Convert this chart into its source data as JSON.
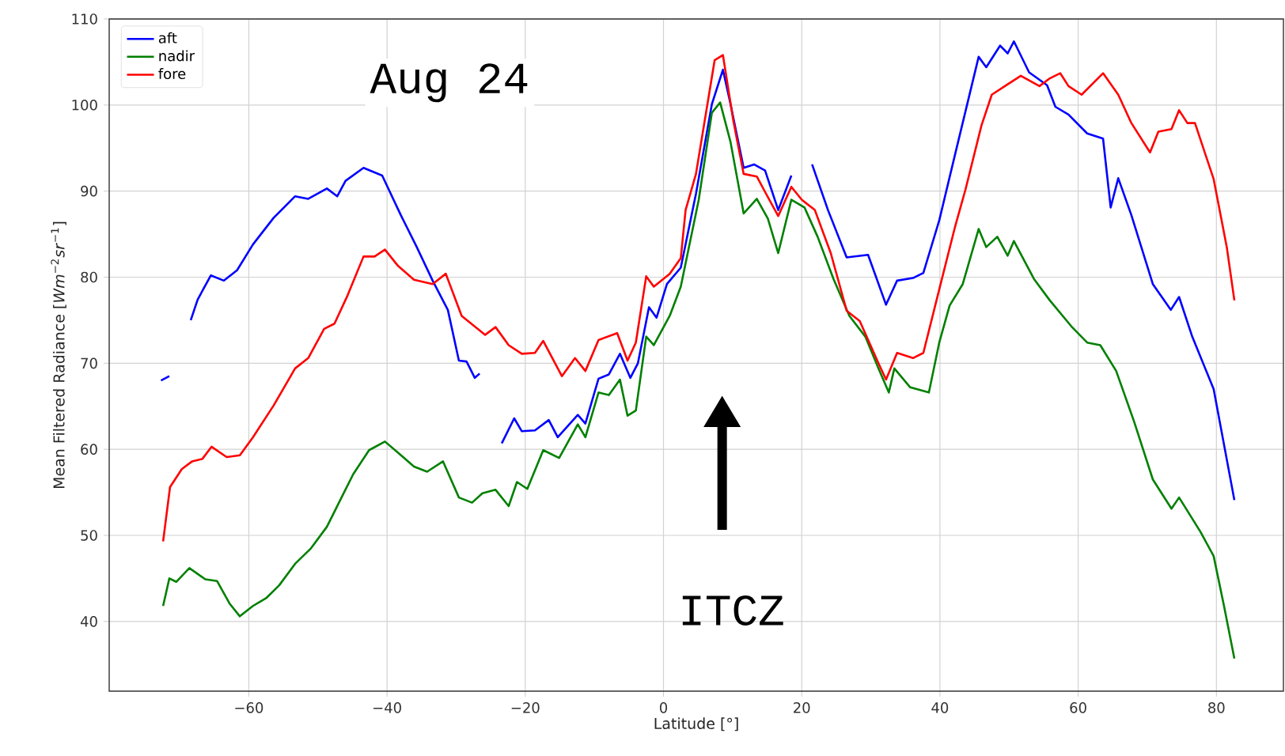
{
  "chart_data": {
    "type": "line",
    "xlabel": "Latitude [°]",
    "ylabel": "Mean Filtered Radiance [*Wm*$^{−2}$*sr*$^{−1}$]",
    "xlim": [
      -80.2,
      89.7
    ],
    "ylim": [
      31.9,
      110
    ],
    "xticks": [
      {
        "value": -60,
        "label": "−60"
      },
      {
        "value": -40,
        "label": "−40"
      },
      {
        "value": -20,
        "label": "−20"
      },
      0,
      20,
      40,
      60,
      80
    ],
    "yticks": [
      40,
      50,
      60,
      70,
      80,
      90,
      100,
      110
    ],
    "grid": true,
    "legend": "top left",
    "annotations": [
      "Aug 24",
      "ITCZ"
    ],
    "series": [
      {
        "name": "aft",
        "color": "#0000ff",
        "x": [
          -72.7,
          -71.5,
          -70,
          -68.4,
          -67.4,
          -65.5,
          -63.6,
          -61.7,
          -59.4,
          -56.4,
          -53.3,
          -51.4,
          -48.7,
          -47.2,
          -46.0,
          -43.4,
          -40.7,
          -38.0,
          -35.7,
          -33.4,
          -31.2,
          -29.6,
          -28.5,
          -27.3,
          -26.6,
          -25,
          -23.4,
          -21.6,
          -20.5,
          -18.6,
          -16.6,
          -15.3,
          -12.4,
          -11.3,
          -9.4,
          -7.9,
          -6.3,
          -4.8,
          -3.7,
          -2.1,
          -1.0,
          0.5,
          2.5,
          4.7,
          7.0,
          8.6,
          9.7,
          11.6,
          13.1,
          14.7,
          16.6,
          18.5,
          20,
          21.5,
          23.8,
          26.5,
          29.6,
          32.2,
          33.8,
          36.1,
          37.6,
          39.9,
          42.2,
          45.6,
          46.7,
          48.7,
          49.8,
          50.7,
          52.9,
          55.5,
          56.7,
          58.6,
          61.3,
          63.6,
          64.7,
          65.8,
          67.7,
          70.8,
          73.4,
          74.6,
          76.5,
          79.6,
          82.6
        ],
        "values": [
          68,
          68.5,
          null,
          75.0,
          77.4,
          80.2,
          79.6,
          80.8,
          83.8,
          86.9,
          89.4,
          89.1,
          90.3,
          89.4,
          91.2,
          92.7,
          91.8,
          87.2,
          83.5,
          79.6,
          76.2,
          70.3,
          70.2,
          68.3,
          68.8,
          null,
          60.7,
          63.6,
          62.1,
          62.2,
          63.4,
          61.4,
          64.0,
          63.0,
          68.2,
          68.7,
          71.1,
          68.3,
          70.0,
          76.5,
          75.3,
          79.2,
          81.1,
          89.7,
          100.1,
          104.1,
          100.1,
          92.7,
          93.1,
          92.4,
          87.8,
          91.8,
          null,
          93.1,
          87.8,
          82.3,
          82.6,
          76.8,
          79.6,
          79.9,
          80.5,
          86.6,
          94.3,
          105.6,
          104.4,
          106.9,
          106.0,
          107.4,
          103.8,
          102.3,
          99.8,
          98.9,
          96.7,
          96.1,
          88.1,
          91.5,
          87.2,
          79.2,
          76.2,
          77.7,
          73.1,
          67.0,
          54.1
        ]
      },
      {
        "name": "nadir",
        "color": "#008000",
        "x": [
          -72.4,
          -71.5,
          -70.5,
          -68.6,
          -66.3,
          -64.6,
          -62.8,
          -61.3,
          -59.4,
          -57.5,
          -55.6,
          -53.3,
          -51.0,
          -48.7,
          -46.4,
          -44.9,
          -42.6,
          -40.3,
          -38.4,
          -36.1,
          -34.2,
          -31.9,
          -29.6,
          -27.7,
          -26.2,
          -24.3,
          -22.4,
          -21.2,
          -19.7,
          -17.4,
          -15.1,
          -12.4,
          -11.3,
          -9.4,
          -7.9,
          -6.3,
          -5.2,
          -4.0,
          -2.5,
          -1.4,
          0.9,
          2.5,
          5.1,
          7.0,
          8.2,
          9.7,
          11.6,
          13.5,
          15.1,
          16.6,
          18.5,
          20.4,
          22.3,
          24.6,
          26.9,
          29.2,
          31.1,
          32.6,
          33.4,
          35.7,
          38.4,
          39.9,
          41.4,
          43.3,
          45.6,
          46.7,
          48.3,
          49.8,
          50.7,
          53.6,
          55.9,
          59.0,
          61.3,
          63.2,
          65.5,
          68.1,
          70.8,
          73.5,
          74.6,
          77.7,
          79.6,
          81.1,
          82.6
        ],
        "values": [
          41.8,
          45.0,
          44.6,
          46.2,
          44.9,
          44.7,
          42.1,
          40.6,
          41.8,
          42.7,
          44.2,
          46.7,
          48.5,
          51.0,
          54.7,
          57.1,
          59.9,
          60.9,
          59.6,
          58.0,
          57.4,
          58.6,
          54.4,
          53.8,
          54.9,
          55.3,
          53.4,
          56.2,
          55.4,
          59.9,
          59.0,
          62.9,
          61.4,
          66.6,
          66.3,
          68.1,
          63.9,
          64.5,
          73.1,
          72.1,
          75.5,
          78.9,
          89.0,
          99.1,
          100.3,
          95.7,
          87.4,
          89.1,
          86.8,
          82.8,
          89.0,
          88.1,
          84.7,
          79.8,
          75.5,
          73.1,
          69.4,
          66.6,
          69.4,
          67.2,
          66.6,
          72.4,
          76.7,
          79.2,
          85.6,
          83.5,
          84.7,
          82.5,
          84.2,
          79.8,
          77.3,
          74.3,
          72.4,
          72.1,
          69.1,
          63.2,
          56.5,
          53.1,
          54.4,
          50.4,
          47.6,
          41.8,
          35.7
        ]
      },
      {
        "name": "fore",
        "color": "#ff0000",
        "x": [
          -72.4,
          -71.4,
          -69.7,
          -68.2,
          -66.7,
          -65.4,
          -63.2,
          -61.3,
          -59.4,
          -56.4,
          -53.3,
          -51.4,
          -49.1,
          -47.6,
          -45.7,
          -43.4,
          -41.8,
          -40.3,
          -38.4,
          -36.1,
          -33.4,
          -31.5,
          -29.2,
          -25.8,
          -24.3,
          -22.4,
          -20.5,
          -18.6,
          -17.4,
          -14.7,
          -12.8,
          -11.3,
          -9.4,
          -6.7,
          -5.2,
          -4.0,
          -2.5,
          -1.4,
          0.9,
          2.5,
          3.2,
          4.7,
          7.4,
          8.6,
          10.1,
          11.6,
          13.5,
          14.7,
          16.6,
          18.5,
          20.0,
          21.9,
          24.2,
          26.5,
          28.4,
          31.1,
          32.2,
          33.8,
          36.1,
          37.6,
          39.5,
          42.2,
          43.7,
          46.0,
          47.5,
          49.4,
          51.7,
          54.4,
          55.9,
          57.4,
          58.6,
          60.5,
          63.6,
          65.8,
          67.7,
          70.4,
          71.6,
          73.5,
          74.6,
          75.8,
          76.9,
          79.6,
          81.5,
          82.6
        ],
        "values": [
          49.3,
          55.6,
          57.7,
          58.6,
          58.9,
          60.3,
          59.1,
          59.3,
          61.4,
          65.1,
          69.4,
          70.6,
          74.0,
          74.6,
          77.9,
          82.4,
          82.4,
          83.2,
          81.3,
          79.7,
          79.2,
          80.4,
          75.5,
          73.3,
          74.2,
          72.1,
          71.1,
          71.2,
          72.6,
          68.5,
          70.6,
          69.1,
          72.7,
          73.5,
          70.3,
          72.4,
          80.1,
          78.9,
          80.4,
          82.2,
          87.8,
          92.0,
          105.2,
          105.8,
          98.2,
          92.0,
          91.7,
          89.9,
          87.1,
          90.5,
          89.0,
          87.8,
          82.8,
          76.1,
          74.9,
          70.0,
          68.1,
          71.2,
          70.6,
          71.2,
          77.3,
          85.9,
          90.2,
          97.6,
          101.2,
          102.2,
          103.4,
          102.2,
          103.1,
          103.7,
          102.2,
          101.2,
          103.7,
          101.2,
          97.9,
          94.5,
          96.9,
          97.2,
          99.4,
          97.9,
          97.9,
          91.4,
          83.5,
          77.3
        ]
      }
    ]
  }
}
